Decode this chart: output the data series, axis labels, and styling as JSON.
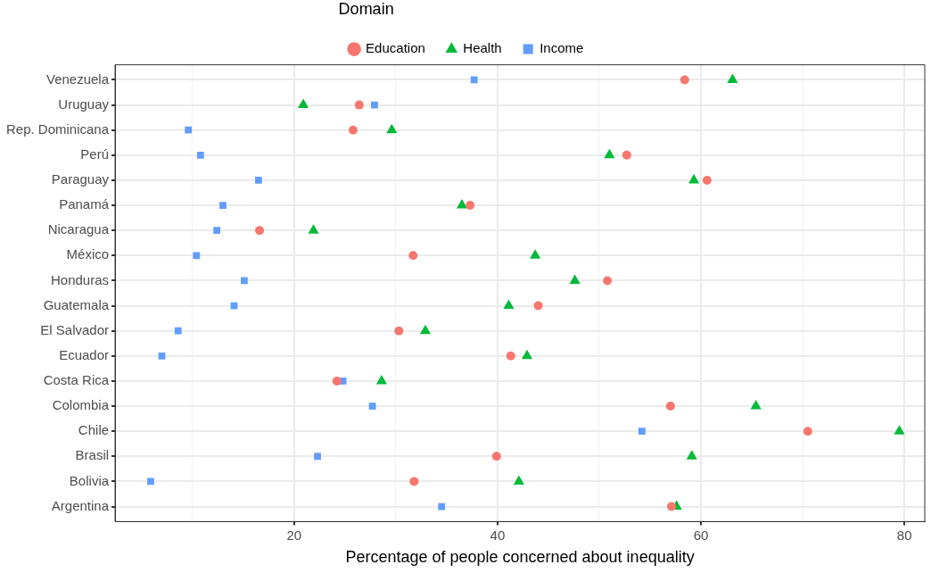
{
  "chart_data": {
    "type": "scatter",
    "orientation": "horizontal",
    "xlabel": "Percentage of people concerned about inequality",
    "legend_title": "Domain",
    "legend": "top",
    "grid": true,
    "categories": [
      "Venezuela",
      "Uruguay",
      "Rep. Dominicana",
      "Perú",
      "Paraguay",
      "Panamá",
      "Nicaragua",
      "México",
      "Honduras",
      "Guatemala",
      "El Salvador",
      "Ecuador",
      "Costa Rica",
      "Colombia",
      "Chile",
      "Brasil",
      "Bolivia",
      "Argentina"
    ],
    "xlim": [
      2.4,
      82.0
    ],
    "xticks": [
      {
        "value": 10,
        "label": null
      },
      20,
      {
        "value": 30,
        "label": null
      },
      40,
      {
        "value": 50,
        "label": null
      },
      60,
      {
        "value": 70,
        "label": null
      },
      80
    ],
    "series": [
      {
        "name": "Education",
        "color": "#f8766d",
        "marker": "circle",
        "values": [
          58.4,
          26.4,
          25.8,
          52.7,
          60.6,
          37.3,
          16.6,
          31.7,
          50.8,
          44.0,
          30.3,
          41.3,
          24.2,
          57.0,
          70.5,
          39.9,
          31.8,
          57.1
        ]
      },
      {
        "name": "Health",
        "color": "#00ba38",
        "marker": "triangle",
        "values": [
          63.1,
          20.9,
          29.6,
          51.0,
          59.3,
          36.5,
          21.9,
          43.7,
          47.6,
          41.1,
          32.9,
          42.9,
          28.6,
          65.4,
          79.5,
          59.1,
          42.1,
          57.6
        ]
      },
      {
        "name": "Income",
        "color": "#619cff",
        "marker": "square",
        "values": [
          37.7,
          27.9,
          9.6,
          10.8,
          16.5,
          13.0,
          12.4,
          10.4,
          15.1,
          14.1,
          8.6,
          7.0,
          24.8,
          27.7,
          54.2,
          22.3,
          5.9,
          34.5
        ]
      }
    ]
  }
}
